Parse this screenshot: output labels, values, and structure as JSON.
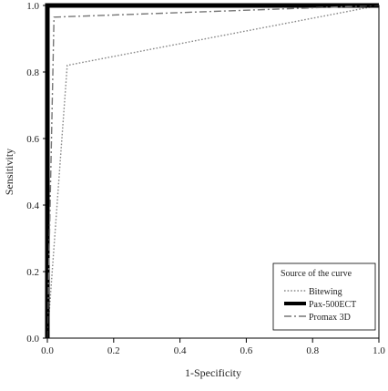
{
  "chart_data": {
    "type": "line",
    "xlabel": "1-Specificity",
    "ylabel": "Sensitivity",
    "xlim": [
      0.0,
      1.0
    ],
    "ylim": [
      0.0,
      1.0
    ],
    "xticks": [
      "0.0",
      "0.2",
      "0.4",
      "0.6",
      "0.8",
      "1.0"
    ],
    "yticks": [
      "0.0",
      "0.2",
      "0.4",
      "0.6",
      "0.8",
      "1.0"
    ],
    "grid": false,
    "legend": {
      "title": "Source of the curve",
      "position": "bottom-right"
    },
    "series": [
      {
        "name": "Bitewing",
        "style": "dotted",
        "color": "#888888",
        "points": [
          [
            0.0,
            0.0
          ],
          [
            0.06,
            0.82
          ],
          [
            1.0,
            1.0
          ]
        ]
      },
      {
        "name": "Pax-500ECT",
        "style": "solid-thick",
        "color": "#000000",
        "points": [
          [
            0.0,
            0.0
          ],
          [
            0.0,
            1.0
          ],
          [
            1.0,
            1.0
          ]
        ]
      },
      {
        "name": "Promax 3D",
        "style": "dashed",
        "color": "#777777",
        "points": [
          [
            0.0,
            0.0
          ],
          [
            0.02,
            0.965
          ],
          [
            1.0,
            1.0
          ]
        ]
      }
    ]
  }
}
